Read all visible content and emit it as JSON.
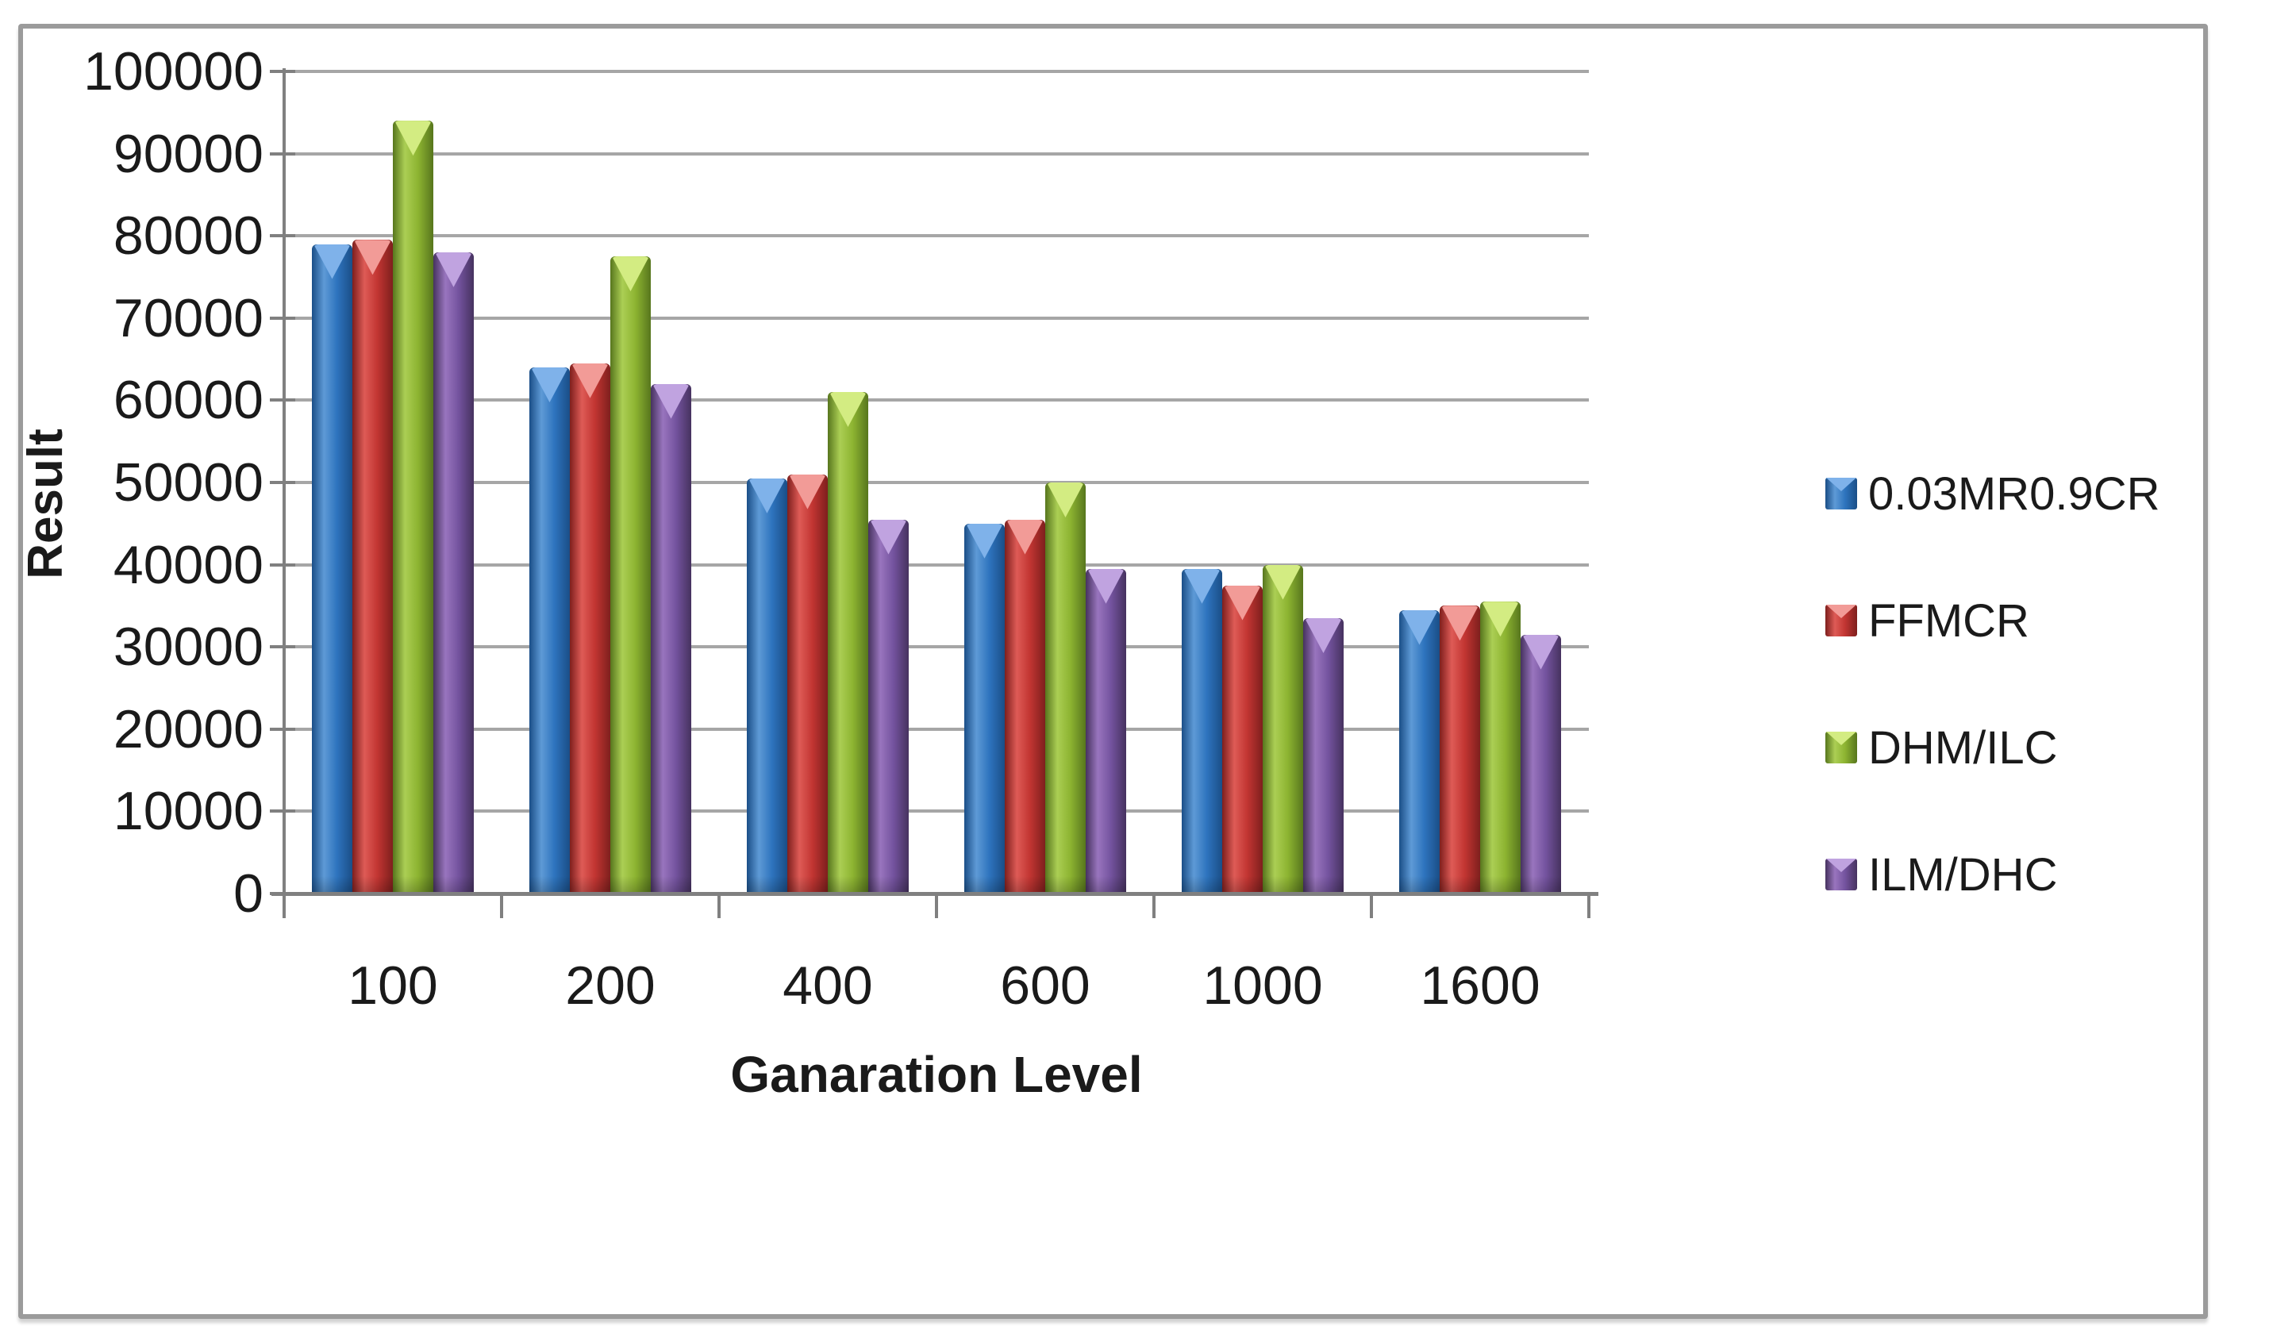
{
  "figure": {
    "background": "#ffffff",
    "border_color": "#9b9b9b",
    "grid_color": "#a6a6a6",
    "axis_color": "#808080",
    "text_color": "#1a1a1a"
  },
  "chart_data": {
    "type": "bar",
    "xlabel": "Ganaration Level",
    "ylabel": "Result",
    "categories": [
      "100",
      "200",
      "400",
      "600",
      "1000",
      "1600"
    ],
    "series": [
      {
        "name": "0.03MR0.9CR",
        "values": [
          79000,
          64000,
          50500,
          45000,
          39500,
          34500
        ],
        "colors": {
          "dark": "#1a4e87",
          "mid": "#2e74be",
          "light": "#5e9ad6",
          "highlight": "#7fb2ea"
        }
      },
      {
        "name": "FFMCR",
        "values": [
          79500,
          64500,
          51000,
          45500,
          37500,
          35000
        ],
        "colors": {
          "dark": "#7e1f1d",
          "mid": "#c23532",
          "light": "#de5b56",
          "highlight": "#f29b97"
        }
      },
      {
        "name": "DHM/ILC",
        "values": [
          94000,
          77500,
          61000,
          50000,
          40000,
          35500
        ],
        "colors": {
          "dark": "#57761d",
          "mid": "#8db431",
          "light": "#abce54",
          "highlight": "#d3ec82"
        }
      },
      {
        "name": "ILM/DHC",
        "values": [
          78000,
          62000,
          45500,
          39500,
          33500,
          31500
        ],
        "colors": {
          "dark": "#46325f",
          "mid": "#74539f",
          "light": "#9975be",
          "highlight": "#c0a3e0"
        }
      }
    ],
    "ylim": [
      0,
      100000
    ],
    "ytick_step": 10000,
    "ytick_labels": [
      "100000",
      "90000",
      "80000",
      "70000",
      "60000",
      "50000",
      "40000",
      "30000",
      "20000",
      "10000",
      "0"
    ],
    "grid": "horizontal",
    "legend_position": "right"
  }
}
